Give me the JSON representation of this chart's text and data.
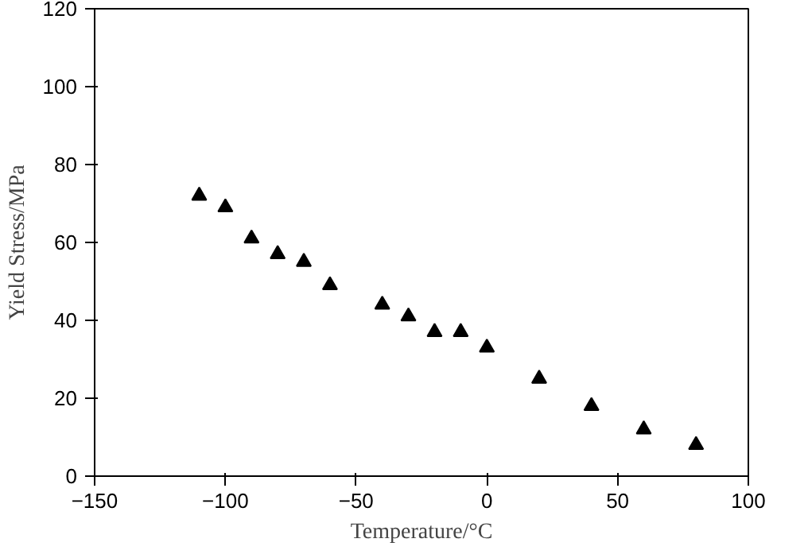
{
  "chart_data": {
    "type": "scatter",
    "xlabel": "Temperature/°C",
    "ylabel": "Yield Stress/MPa",
    "x": [
      -110,
      -100,
      -90,
      -80,
      -70,
      -60,
      -40,
      -30,
      -20,
      -10,
      0,
      20,
      40,
      60,
      80
    ],
    "values": [
      72,
      69,
      61,
      57,
      55,
      49,
      44,
      41,
      37,
      37,
      33,
      25,
      18,
      12,
      8
    ],
    "color": "#000000",
    "marker": "triangle",
    "xlim": [
      -150,
      100
    ],
    "xticks": [
      -150,
      -100,
      -50,
      0,
      50,
      100
    ],
    "ylim": [
      0,
      120
    ],
    "yticks": [
      0,
      20,
      40,
      60,
      80,
      100,
      120
    ],
    "grid": false
  }
}
